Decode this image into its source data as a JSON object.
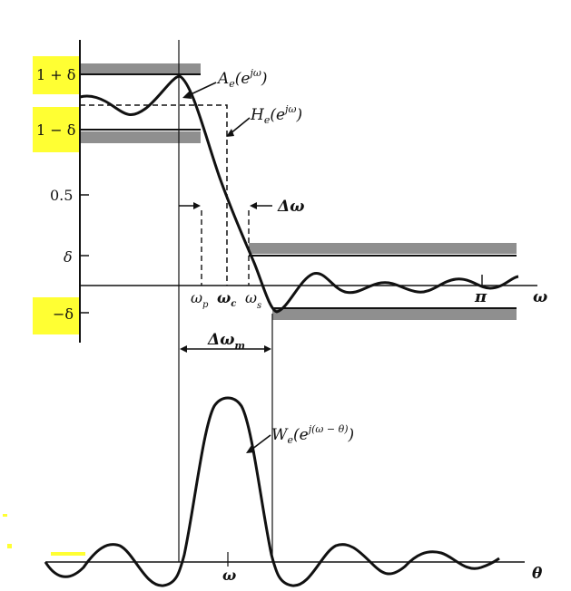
{
  "colors": {
    "highlight": "#ffff33",
    "ink": "#111111",
    "band_fill": "#8f8f8f"
  },
  "y_axis_labels": {
    "one_plus_delta": "1 + δ",
    "one_minus_delta": "1 − δ",
    "half": "0.5",
    "delta": "δ",
    "minus_delta": "−δ"
  },
  "curve_labels": {
    "A": {
      "main": "A",
      "sub": "e",
      "paren_open": "(e",
      "sup": "jω",
      "paren_close": ")"
    },
    "H": {
      "main": "H",
      "sub": "e",
      "paren_open": "(e",
      "sup": "jω",
      "paren_close": ")"
    },
    "W": {
      "main": "W",
      "sub": "e",
      "paren_open": "(e",
      "sup": "j(ω − θ)",
      "paren_close": ")"
    }
  },
  "freq_labels": {
    "omega_p": {
      "main": "ω",
      "sub": "p"
    },
    "omega_c": {
      "main": "ω",
      "sub": "c"
    },
    "omega_s": {
      "main": "ω",
      "sub": "s"
    },
    "pi": "π",
    "omega_axis": "ω",
    "delta_omega": "Δω",
    "delta_omega_m": {
      "main": "Δω",
      "sub": "m"
    },
    "window_center": "ω",
    "theta_axis": "θ"
  }
}
